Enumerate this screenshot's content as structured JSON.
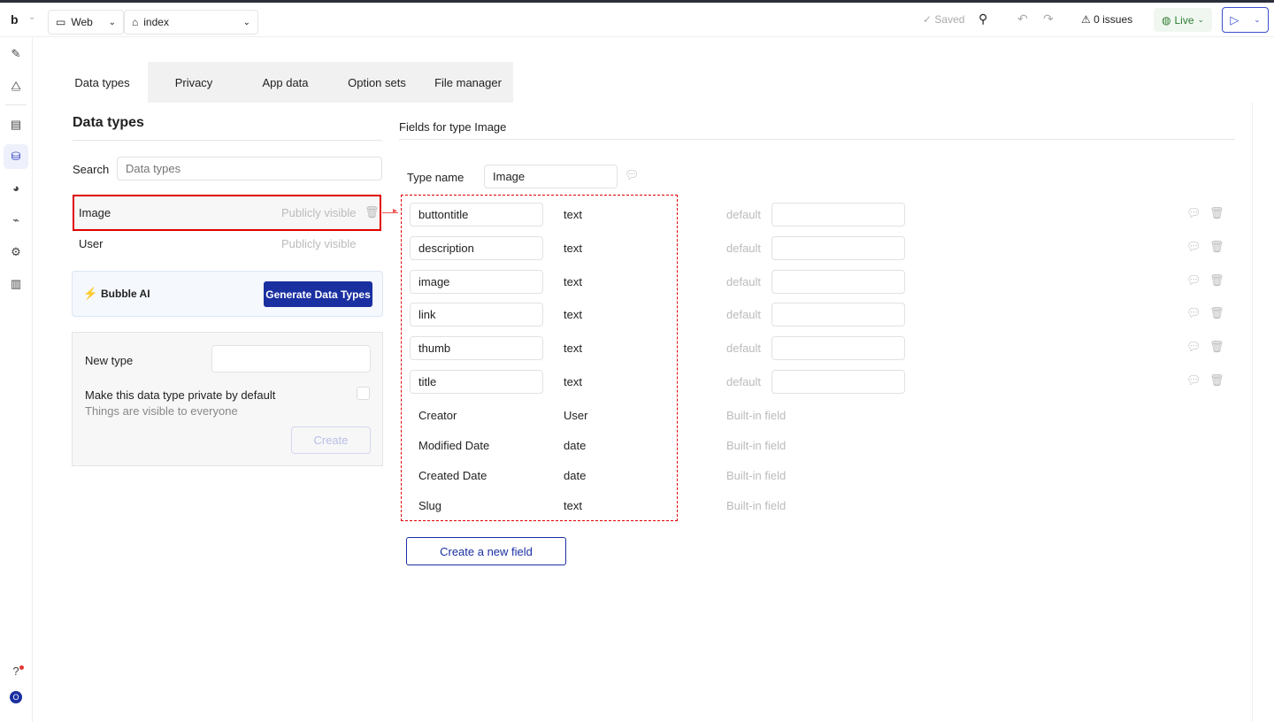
{
  "topbar": {
    "logo": "b",
    "platform": "Web",
    "page": "index",
    "saved": "Saved",
    "issues": "0 issues",
    "live": "Live"
  },
  "tabs": [
    {
      "label": "Data types"
    },
    {
      "label": "Privacy"
    },
    {
      "label": "App data"
    },
    {
      "label": "Option sets"
    },
    {
      "label": "File manager"
    }
  ],
  "left": {
    "title": "Data types",
    "search_label": "Search",
    "search_placeholder": "Data types",
    "types": [
      {
        "name": "Image",
        "visibility": "Publicly visible"
      },
      {
        "name": "User",
        "visibility": "Publicly visible"
      }
    ],
    "ai_label": "Bubble AI",
    "ai_button": "Generate Data Types",
    "new_type_label": "New type",
    "private_label": "Make this data type private by default",
    "private_hint": "Things are visible to everyone",
    "create_button": "Create"
  },
  "right": {
    "title": "Fields for type Image",
    "type_name_label": "Type name",
    "type_name_value": "Image",
    "fields": [
      {
        "name": "buttontitle",
        "type": "text"
      },
      {
        "name": "description",
        "type": "text"
      },
      {
        "name": "image",
        "type": "text"
      },
      {
        "name": "link",
        "type": "text"
      },
      {
        "name": "thumb",
        "type": "text"
      },
      {
        "name": "title",
        "type": "text"
      }
    ],
    "default_label": "default",
    "builtin": [
      {
        "name": "Creator",
        "type": "User"
      },
      {
        "name": "Modified Date",
        "type": "date"
      },
      {
        "name": "Created Date",
        "type": "date"
      },
      {
        "name": "Slug",
        "type": "text"
      }
    ],
    "builtin_label": "Built-in field",
    "new_field_button": "Create a new field"
  },
  "colors": {
    "accent": "#1a2fa0",
    "highlight": "#e00000",
    "live": "#2e7d32"
  }
}
